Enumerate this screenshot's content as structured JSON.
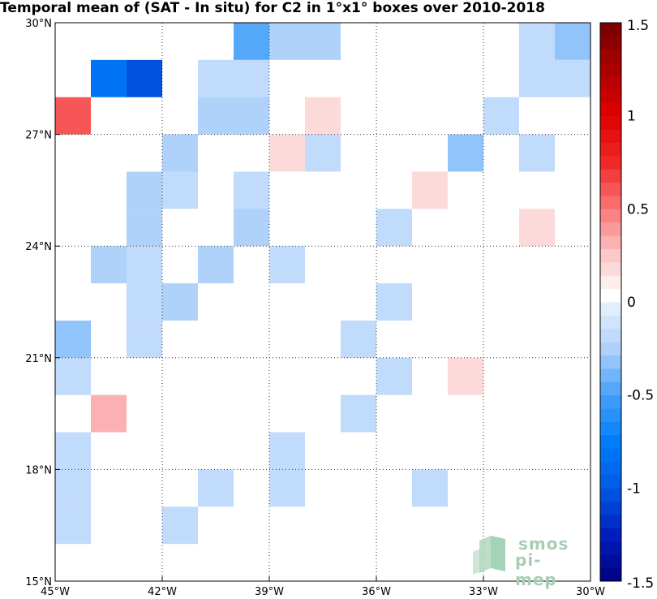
{
  "chart_data": {
    "type": "heatmap",
    "title": "Temporal mean of (SAT - In situ) for C2 in 1°x1° boxes over 2010-2018",
    "x_tick_labels": [
      "45°W",
      "42°W",
      "39°W",
      "36°W",
      "33°W",
      "30°W"
    ],
    "y_tick_labels": [
      "15°N",
      "18°N",
      "21°N",
      "24°N",
      "27°N",
      "30°N"
    ],
    "x_range": [
      -45,
      -30
    ],
    "y_range": [
      15,
      30
    ],
    "colorbar": {
      "range": [
        -1.5,
        1.5
      ],
      "tick_labels": [
        "1.5",
        "1",
        "0.5",
        "0",
        "-0.5",
        "-1",
        "-1.5"
      ],
      "tick_values": [
        1.5,
        1,
        0.5,
        0,
        -0.5,
        -1,
        -1.5
      ]
    },
    "grid": true,
    "cells": [
      {
        "lon": -40,
        "lat": 29,
        "value": -0.45
      },
      {
        "lon": -39,
        "lat": 29,
        "value": -0.25
      },
      {
        "lon": -38,
        "lat": 29,
        "value": -0.25
      },
      {
        "lon": -32,
        "lat": 29,
        "value": -0.15
      },
      {
        "lon": -31,
        "lat": 29,
        "value": -0.3
      },
      {
        "lon": -44,
        "lat": 28,
        "value": -0.85
      },
      {
        "lon": -43,
        "lat": 28,
        "value": -1.05
      },
      {
        "lon": -41,
        "lat": 28,
        "value": -0.15
      },
      {
        "lon": -40,
        "lat": 28,
        "value": -0.15
      },
      {
        "lon": -32,
        "lat": 28,
        "value": -0.15
      },
      {
        "lon": -31,
        "lat": 28,
        "value": -0.15
      },
      {
        "lon": -45,
        "lat": 27,
        "value": 0.6
      },
      {
        "lon": -41,
        "lat": 27,
        "value": -0.25
      },
      {
        "lon": -40,
        "lat": 27,
        "value": -0.25
      },
      {
        "lon": -38,
        "lat": 27,
        "value": 0.15
      },
      {
        "lon": -33,
        "lat": 27,
        "value": -0.15
      },
      {
        "lon": -42,
        "lat": 26,
        "value": -0.25
      },
      {
        "lon": -39,
        "lat": 26,
        "value": 0.15
      },
      {
        "lon": -38,
        "lat": 26,
        "value": -0.15
      },
      {
        "lon": -34,
        "lat": 26,
        "value": -0.3
      },
      {
        "lon": -32,
        "lat": 26,
        "value": -0.15
      },
      {
        "lon": -43,
        "lat": 25,
        "value": -0.25
      },
      {
        "lon": -42,
        "lat": 25,
        "value": -0.15
      },
      {
        "lon": -40,
        "lat": 25,
        "value": -0.15
      },
      {
        "lon": -35,
        "lat": 25,
        "value": 0.15
      },
      {
        "lon": -43,
        "lat": 24,
        "value": -0.25
      },
      {
        "lon": -40,
        "lat": 24,
        "value": -0.25
      },
      {
        "lon": -36,
        "lat": 24,
        "value": -0.15
      },
      {
        "lon": -32,
        "lat": 24,
        "value": 0.15
      },
      {
        "lon": -44,
        "lat": 23,
        "value": -0.25
      },
      {
        "lon": -43,
        "lat": 23,
        "value": -0.15
      },
      {
        "lon": -41,
        "lat": 23,
        "value": -0.25
      },
      {
        "lon": -39,
        "lat": 23,
        "value": -0.15
      },
      {
        "lon": -43,
        "lat": 22,
        "value": -0.15
      },
      {
        "lon": -42,
        "lat": 22,
        "value": -0.25
      },
      {
        "lon": -36,
        "lat": 22,
        "value": -0.15
      },
      {
        "lon": -45,
        "lat": 21,
        "value": -0.3
      },
      {
        "lon": -43,
        "lat": 21,
        "value": -0.15
      },
      {
        "lon": -37,
        "lat": 21,
        "value": -0.15
      },
      {
        "lon": -45,
        "lat": 20,
        "value": -0.15
      },
      {
        "lon": -36,
        "lat": 20,
        "value": -0.15
      },
      {
        "lon": -34,
        "lat": 20,
        "value": 0.15
      },
      {
        "lon": -44,
        "lat": 19,
        "value": 0.3
      },
      {
        "lon": -37,
        "lat": 19,
        "value": -0.15
      },
      {
        "lon": -45,
        "lat": 18,
        "value": -0.15
      },
      {
        "lon": -39,
        "lat": 18,
        "value": -0.15
      },
      {
        "lon": -45,
        "lat": 17,
        "value": -0.15
      },
      {
        "lon": -41,
        "lat": 17,
        "value": -0.15
      },
      {
        "lon": -39,
        "lat": 17,
        "value": -0.15
      },
      {
        "lon": -35,
        "lat": 17,
        "value": -0.15
      },
      {
        "lon": -45,
        "lat": 16,
        "value": -0.15
      },
      {
        "lon": -42,
        "lat": 16,
        "value": -0.15
      }
    ]
  },
  "logo": {
    "line1": "smos",
    "line2": "pi-mep"
  }
}
